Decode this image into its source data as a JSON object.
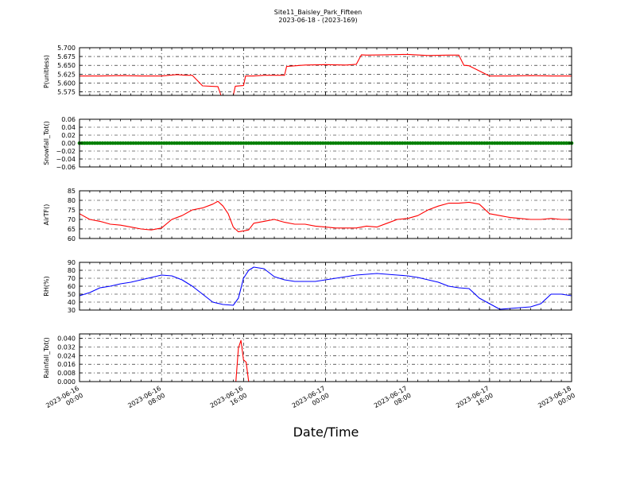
{
  "figure": {
    "title": "Site11_Baisley_Park_Fifteen",
    "subtitle": "2023-06-18 - (2023-169)",
    "xlabel": "Date/Time"
  },
  "chart_data": [
    {
      "type": "line",
      "ylabel": "P(unitless)",
      "color": "#ff0000",
      "ylim": [
        5.565,
        5.7
      ],
      "yticks": [
        5.575,
        5.6,
        5.625,
        5.65,
        5.675,
        5.7
      ],
      "ytick_labels": [
        "5.575",
        "5.600",
        "5.625",
        "5.650",
        "5.675",
        "5.700"
      ],
      "grid": true,
      "x": [
        0,
        2,
        4,
        6,
        8,
        9.5,
        10.4,
        11,
        12,
        13.5,
        13.8,
        15,
        15.2,
        16,
        16.2,
        17,
        18,
        20,
        20.2,
        22,
        24,
        26,
        27,
        27.5,
        28,
        30,
        32,
        34,
        36,
        37,
        37.5,
        38,
        40,
        42,
        44,
        46,
        48
      ],
      "y": [
        5.62,
        5.62,
        5.621,
        5.62,
        5.62,
        5.624,
        5.622,
        5.622,
        5.592,
        5.59,
        5.565,
        5.565,
        5.591,
        5.593,
        5.62,
        5.62,
        5.622,
        5.622,
        5.647,
        5.651,
        5.652,
        5.651,
        5.653,
        5.68,
        5.679,
        5.68,
        5.681,
        5.678,
        5.679,
        5.679,
        5.65,
        5.649,
        5.62,
        5.62,
        5.621,
        5.62,
        5.62
      ]
    },
    {
      "type": "scatter",
      "ylabel": "Snowfall_Tot()",
      "color": "#008000",
      "ylim": [
        -0.06,
        0.06
      ],
      "yticks": [
        -0.06,
        -0.04,
        -0.02,
        0,
        0.02,
        0.04,
        0.06
      ],
      "ytick_labels": [
        "−0.06",
        "−0.04",
        "−0.02",
        "0.00",
        "0.02",
        "0.04",
        "0.06"
      ],
      "grid": true,
      "constant_value": 0,
      "x_range": [
        0,
        48
      ],
      "x_step": 0.25
    },
    {
      "type": "line",
      "ylabel": "AirTF()",
      "color": "#ff0000",
      "ylim": [
        60,
        85
      ],
      "yticks": [
        60,
        65,
        70,
        75,
        80,
        85
      ],
      "ytick_labels": [
        "60",
        "65",
        "70",
        "75",
        "80",
        "85"
      ],
      "grid": true,
      "x": [
        0,
        1,
        2,
        3,
        4,
        5,
        6,
        7,
        8,
        9,
        10,
        11,
        12,
        13,
        13.5,
        14,
        14.5,
        15,
        15.5,
        16,
        16.5,
        17,
        18,
        19,
        20,
        21,
        22,
        23,
        24,
        25,
        26,
        27,
        28,
        29,
        30,
        31,
        32,
        33,
        34,
        35,
        36,
        37,
        38,
        39,
        40,
        41,
        42,
        43,
        44,
        45,
        46,
        47,
        48
      ],
      "y": [
        73,
        70,
        69,
        67.5,
        67,
        66,
        65,
        64.5,
        65.5,
        70,
        72,
        75,
        76,
        78,
        79.5,
        77,
        73,
        66,
        63.5,
        64,
        64.5,
        68,
        69,
        70,
        68.5,
        67.5,
        67.5,
        66.5,
        66,
        65.5,
        65.5,
        65.5,
        66.5,
        66,
        68,
        70,
        70.5,
        72,
        75,
        77,
        78.5,
        78.5,
        79,
        78,
        73,
        72,
        71,
        70.5,
        70,
        70,
        70.5,
        70,
        70
      ]
    },
    {
      "type": "line",
      "ylabel": "RH(%)",
      "color": "#0000ff",
      "ylim": [
        30,
        90
      ],
      "yticks": [
        30,
        40,
        50,
        60,
        70,
        80,
        90
      ],
      "ytick_labels": [
        "30",
        "40",
        "50",
        "60",
        "70",
        "80",
        "90"
      ],
      "grid": true,
      "x": [
        0,
        1,
        2,
        3,
        4,
        5,
        6,
        7,
        8,
        9,
        10,
        11,
        12,
        13,
        14,
        15,
        15.5,
        16,
        16.5,
        17,
        18,
        19,
        20,
        21,
        22,
        23,
        24,
        25,
        26,
        27,
        28,
        29,
        30,
        31,
        32,
        33,
        34,
        35,
        36,
        37,
        38,
        39,
        40,
        41,
        42,
        43,
        44,
        45,
        46,
        47,
        48
      ],
      "y": [
        48,
        52,
        58,
        60,
        63,
        65,
        68,
        71,
        74,
        73,
        68,
        60,
        50,
        40,
        37,
        36,
        45,
        70,
        80,
        84,
        82,
        72,
        68,
        66,
        66,
        66,
        68,
        70,
        72,
        74,
        75,
        76,
        75,
        74,
        73,
        71,
        68,
        65,
        60,
        58,
        57,
        45,
        38,
        31,
        32,
        33,
        34,
        38,
        50,
        50,
        48
      ]
    },
    {
      "type": "line",
      "ylabel": "Rainfall_Tot()",
      "color": "#ff0000",
      "ylim": [
        0,
        0.044
      ],
      "yticks": [
        0,
        0.008,
        0.016,
        0.024,
        0.032,
        0.04
      ],
      "ytick_labels": [
        "0.000",
        "0.008",
        "0.016",
        "0.024",
        "0.032",
        "0.040"
      ],
      "grid": true,
      "x": [
        0,
        15.25,
        15.5,
        15.75,
        16,
        16.25,
        16.5,
        48
      ],
      "y": [
        0,
        0,
        0.031,
        0.038,
        0.02,
        0.018,
        0,
        0
      ]
    }
  ],
  "x_axis": {
    "range_hours": [
      0,
      48
    ],
    "ticks_hours": [
      0,
      8,
      16,
      24,
      32,
      40,
      48
    ],
    "tick_labels": [
      [
        "2023-06-16",
        "00:00"
      ],
      [
        "2023-06-16",
        "08:00"
      ],
      [
        "2023-06-16",
        "16:00"
      ],
      [
        "2023-06-17",
        "00:00"
      ],
      [
        "2023-06-17",
        "08:00"
      ],
      [
        "2023-06-17",
        "16:00"
      ],
      [
        "2023-06-18",
        "00:00"
      ]
    ]
  }
}
